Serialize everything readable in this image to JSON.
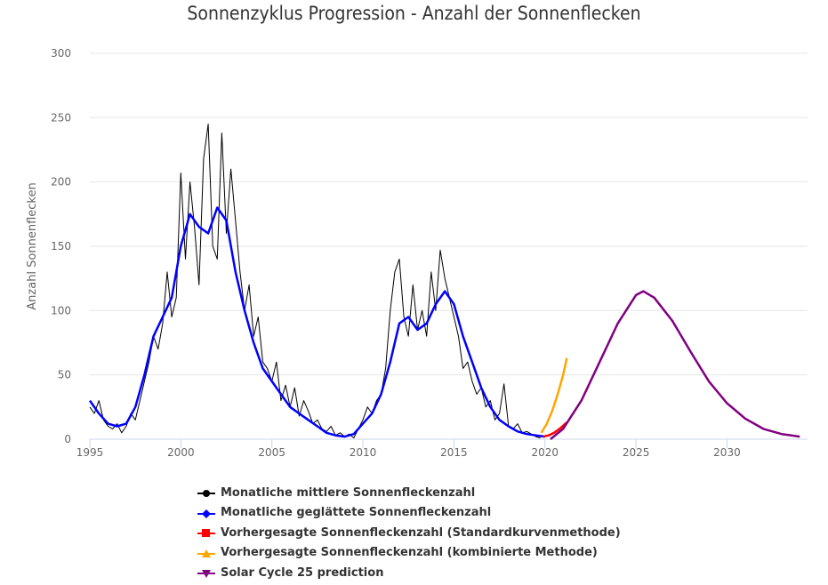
{
  "chart_data": {
    "type": "line",
    "title": "Sonnenzyklus Progression - Anzahl der Sonnenflecken",
    "xlabel": "",
    "ylabel": "Anzahl Sonnenflecken",
    "xlim": [
      1995,
      2035
    ],
    "ylim": [
      0,
      300
    ],
    "xticks": [
      1995,
      2000,
      2005,
      2010,
      2015,
      2020,
      2025,
      2030
    ],
    "yticks": [
      0,
      50,
      100,
      150,
      200,
      250,
      300
    ],
    "grid": true,
    "legend_position": "bottom",
    "series": [
      {
        "name": "Monatliche mittlere Sonnenfleckenzahl",
        "color": "#000000",
        "marker": "circle",
        "x_start": 1995,
        "x_step": 0.25,
        "values": [
          25,
          20,
          30,
          15,
          10,
          8,
          12,
          5,
          10,
          20,
          15,
          30,
          45,
          60,
          80,
          70,
          90,
          130,
          95,
          110,
          207,
          140,
          200,
          165,
          120,
          218,
          245,
          150,
          140,
          238,
          160,
          210,
          170,
          130,
          100,
          120,
          80,
          95,
          60,
          55,
          45,
          60,
          30,
          42,
          25,
          40,
          18,
          30,
          22,
          12,
          15,
          8,
          6,
          10,
          3,
          5,
          2,
          4,
          1,
          8,
          15,
          25,
          20,
          30,
          35,
          55,
          100,
          130,
          140,
          95,
          80,
          120,
          85,
          100,
          80,
          130,
          100,
          147,
          125,
          110,
          95,
          80,
          55,
          60,
          45,
          35,
          40,
          25,
          30,
          15,
          20,
          43,
          10,
          8,
          12,
          5,
          6,
          4,
          2,
          1
        ]
      },
      {
        "name": "Monatliche geglättete Sonnenfleckenzahl",
        "color": "#0000ff",
        "marker": "diamond",
        "x_start": 1995,
        "x_step": 0.5,
        "values": [
          30,
          20,
          12,
          10,
          12,
          25,
          50,
          80,
          95,
          110,
          150,
          175,
          165,
          160,
          180,
          170,
          130,
          100,
          75,
          55,
          45,
          35,
          25,
          20,
          15,
          10,
          5,
          3,
          2,
          4,
          12,
          20,
          35,
          60,
          90,
          95,
          85,
          90,
          105,
          115,
          105,
          80,
          60,
          40,
          25,
          15,
          10,
          6,
          4,
          3,
          2
        ]
      },
      {
        "name": "Vorhergesagte Sonnenfleckenzahl (Standardkurvenmethode)",
        "color": "#ff0000",
        "marker": "square",
        "x": [
          2019.9,
          2020.2,
          2020.5,
          2020.8,
          2021.2
        ],
        "values": [
          2,
          3,
          5,
          8,
          13
        ]
      },
      {
        "name": "Vorhergesagte Sonnenfleckenzahl (kombinierte Methode)",
        "color": "#ffa500",
        "marker": "triangle-up",
        "x": [
          2019.8,
          2020.1,
          2020.4,
          2020.7,
          2021.0,
          2021.2
        ],
        "values": [
          5,
          12,
          22,
          35,
          50,
          63
        ]
      },
      {
        "name": "Solar Cycle 25 prediction",
        "color": "#800080",
        "marker": "triangle-down",
        "x": [
          2020.3,
          2021,
          2022,
          2023,
          2024,
          2025,
          2025.4,
          2026,
          2027,
          2028,
          2029,
          2030,
          2031,
          2032,
          2033,
          2034
        ],
        "values": [
          0,
          8,
          30,
          60,
          90,
          112,
          115,
          110,
          92,
          68,
          45,
          28,
          16,
          8,
          4,
          2
        ]
      }
    ]
  }
}
